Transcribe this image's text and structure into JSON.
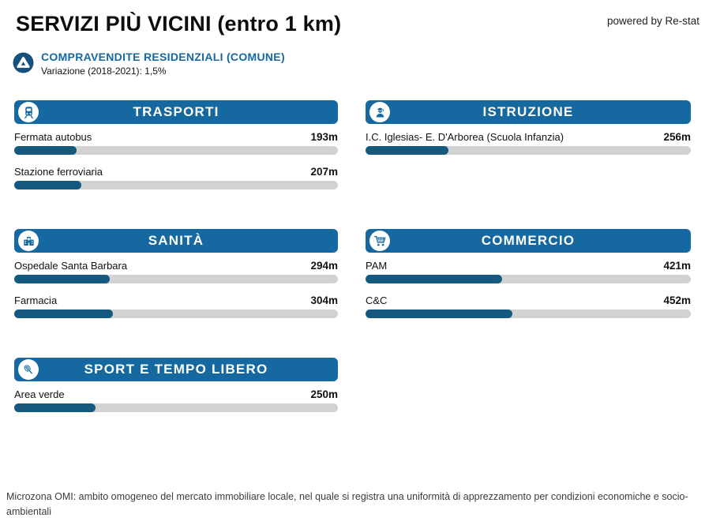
{
  "header": {
    "title": "SERVIZI PIÙ VICINI (entro 1 km)",
    "powered_by": "powered by Re-stat"
  },
  "subheader": {
    "title": "COMPRAVENDITE RESIDENZIALI (COMUNE)",
    "subtitle": "Variazione (2018-2021): 1,5%",
    "icon": "variation-delta-icon"
  },
  "colors": {
    "panel_header_blue": "#1568a0",
    "bar_fill_blue": "#15597f",
    "bar_track_gray": "#d2d2d2",
    "accent_text_blue": "#1568a0",
    "variation_icon_blue": "#14527c"
  },
  "chart_data": [
    {
      "type": "bar",
      "orientation": "horizontal",
      "title": "TRASPORTI",
      "icon": "train-icon",
      "unit": "m",
      "xlim": [
        0,
        1000
      ],
      "categories": [
        "Fermata autobus",
        "Stazione ferroviaria"
      ],
      "values": [
        193,
        207
      ],
      "value_labels": [
        "193m",
        "207m"
      ]
    },
    {
      "type": "bar",
      "orientation": "horizontal",
      "title": "ISTRUZIONE",
      "icon": "student-icon",
      "unit": "m",
      "xlim": [
        0,
        1000
      ],
      "categories": [
        "I.C. Iglesias- E. D'Arborea (Scuola Infanzia)"
      ],
      "values": [
        256
      ],
      "value_labels": [
        "256m"
      ]
    },
    {
      "type": "bar",
      "orientation": "horizontal",
      "title": "SANITÀ",
      "icon": "hospital-icon",
      "unit": "m",
      "xlim": [
        0,
        1000
      ],
      "categories": [
        "Ospedale Santa Barbara",
        "Farmacia"
      ],
      "values": [
        294,
        304
      ],
      "value_labels": [
        "294m",
        "304m"
      ]
    },
    {
      "type": "bar",
      "orientation": "horizontal",
      "title": "COMMERCIO",
      "icon": "cart-icon",
      "unit": "m",
      "xlim": [
        0,
        1000
      ],
      "categories": [
        "PAM",
        "C&C"
      ],
      "values": [
        421,
        452
      ],
      "value_labels": [
        "421m",
        "452m"
      ]
    },
    {
      "type": "bar",
      "orientation": "horizontal",
      "title": "SPORT E TEMPO LIBERO",
      "icon": "racket-icon",
      "unit": "m",
      "xlim": [
        0,
        1000
      ],
      "categories": [
        "Area verde"
      ],
      "values": [
        250
      ],
      "value_labels": [
        "250m"
      ]
    }
  ],
  "footer": {
    "note": "Microzona OMI: ambito omogeneo del mercato immobiliare locale, nel quale si registra una uniformità di apprezzamento per condizioni economiche e socio-ambientali"
  }
}
